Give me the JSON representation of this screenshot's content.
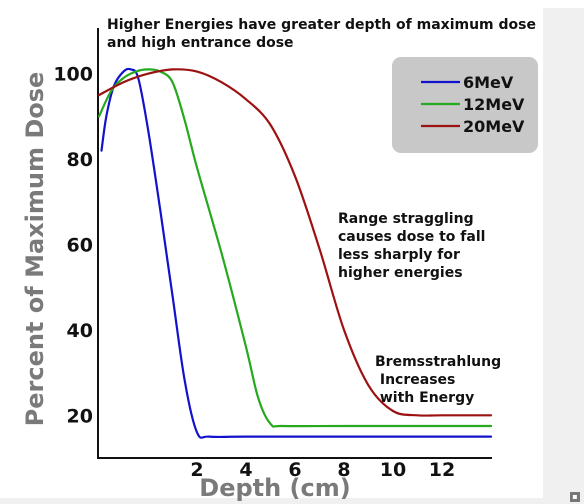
{
  "chart_data": {
    "type": "line",
    "title": "Higher Energies have greater depth of maximum dose",
    "subtitle": "and high entrance dose",
    "xlabel": "Depth (cm)",
    "ylabel": "Percent of Maximum Dose",
    "xlim": [
      -2,
      14
    ],
    "ylim": [
      10,
      110
    ],
    "x_ticks": [
      "2",
      "4",
      "6",
      "8",
      "10",
      "12"
    ],
    "x_tick_values": [
      2,
      4,
      6,
      8,
      10,
      12
    ],
    "y_ticks": [
      "20",
      "40",
      "60",
      "80",
      "100"
    ],
    "y_tick_values": [
      20,
      40,
      60,
      80,
      100
    ],
    "grid": false,
    "legend_position": "top-right",
    "series": [
      {
        "name": "6MeV",
        "color": "#1212cc",
        "points": [
          [
            -1.9,
            82
          ],
          [
            -1.7,
            90
          ],
          [
            -1.4,
            97
          ],
          [
            -1.0,
            100.5
          ],
          [
            -0.7,
            101
          ],
          [
            -0.4,
            99
          ],
          [
            0.0,
            87
          ],
          [
            0.5,
            68
          ],
          [
            1.0,
            48
          ],
          [
            1.5,
            28
          ],
          [
            2.0,
            16
          ],
          [
            2.5,
            15
          ],
          [
            4,
            15
          ],
          [
            8,
            15
          ],
          [
            12,
            15
          ],
          [
            14,
            15
          ]
        ]
      },
      {
        "name": "12MeV",
        "color": "#26a81f",
        "points": [
          [
            -2.0,
            90
          ],
          [
            -1.5,
            96
          ],
          [
            -1.0,
            99
          ],
          [
            -0.5,
            100.5
          ],
          [
            0.0,
            101
          ],
          [
            0.5,
            100.5
          ],
          [
            1.0,
            98
          ],
          [
            1.5,
            89
          ],
          [
            2.0,
            78
          ],
          [
            3.0,
            58
          ],
          [
            4.0,
            36
          ],
          [
            4.5,
            24
          ],
          [
            5.0,
            18
          ],
          [
            5.5,
            17.5
          ],
          [
            8,
            17.5
          ],
          [
            12,
            17.5
          ],
          [
            14,
            17.5
          ]
        ]
      },
      {
        "name": "20MeV",
        "color": "#9c1111",
        "points": [
          [
            -2.0,
            95
          ],
          [
            -1.0,
            98
          ],
          [
            0.0,
            100
          ],
          [
            1.0,
            101
          ],
          [
            2.0,
            100.5
          ],
          [
            3.0,
            98
          ],
          [
            4.0,
            94
          ],
          [
            5.0,
            88
          ],
          [
            6.0,
            76
          ],
          [
            7.0,
            59
          ],
          [
            8.0,
            40
          ],
          [
            9.0,
            27
          ],
          [
            10.0,
            21
          ],
          [
            11.0,
            20
          ],
          [
            12,
            20
          ],
          [
            14,
            20
          ]
        ]
      }
    ],
    "annotations": [
      {
        "id": "range",
        "lines": [
          "Range straggling",
          "causes dose to fall",
          "less sharply for",
          "higher energies"
        ]
      },
      {
        "id": "brems",
        "lines": [
          "Bremsstrahlung",
          " Increases",
          " with Energy"
        ]
      }
    ]
  }
}
